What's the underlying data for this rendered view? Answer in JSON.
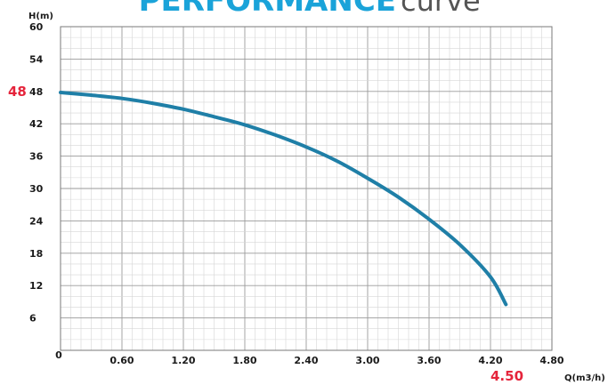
{
  "chart_data": {
    "type": "line",
    "title": "PERFORMANCE",
    "subtitle": "curve",
    "xlabel": "Q(m3/h)",
    "ylabel": "H(m)",
    "xlim": [
      0,
      4.8
    ],
    "ylim": [
      0,
      60
    ],
    "x_ticks": [
      "0",
      "0.60",
      "1.20",
      "1.80",
      "2.40",
      "3.00",
      "3.60",
      "4.20",
      "4.80"
    ],
    "y_ticks": [
      "60",
      "54",
      "48",
      "42",
      "36",
      "30",
      "24",
      "18",
      "12",
      "6"
    ],
    "grid": true,
    "highlight": {
      "y_label": "48",
      "x_label": "4.50"
    },
    "line_color": "#1f7fa7",
    "highlight_color": "#e5243b",
    "series": [
      {
        "x": [
          0,
          0.3,
          0.6,
          0.9,
          1.2,
          1.5,
          1.8,
          2.1,
          2.4,
          2.7,
          3.0,
          3.3,
          3.6,
          3.9,
          4.2,
          4.35
        ],
        "y": [
          47.8,
          47.3,
          46.7,
          45.8,
          44.7,
          43.3,
          41.8,
          39.9,
          37.7,
          35.1,
          31.9,
          28.4,
          24.3,
          19.6,
          13.6,
          8.5
        ]
      }
    ]
  }
}
